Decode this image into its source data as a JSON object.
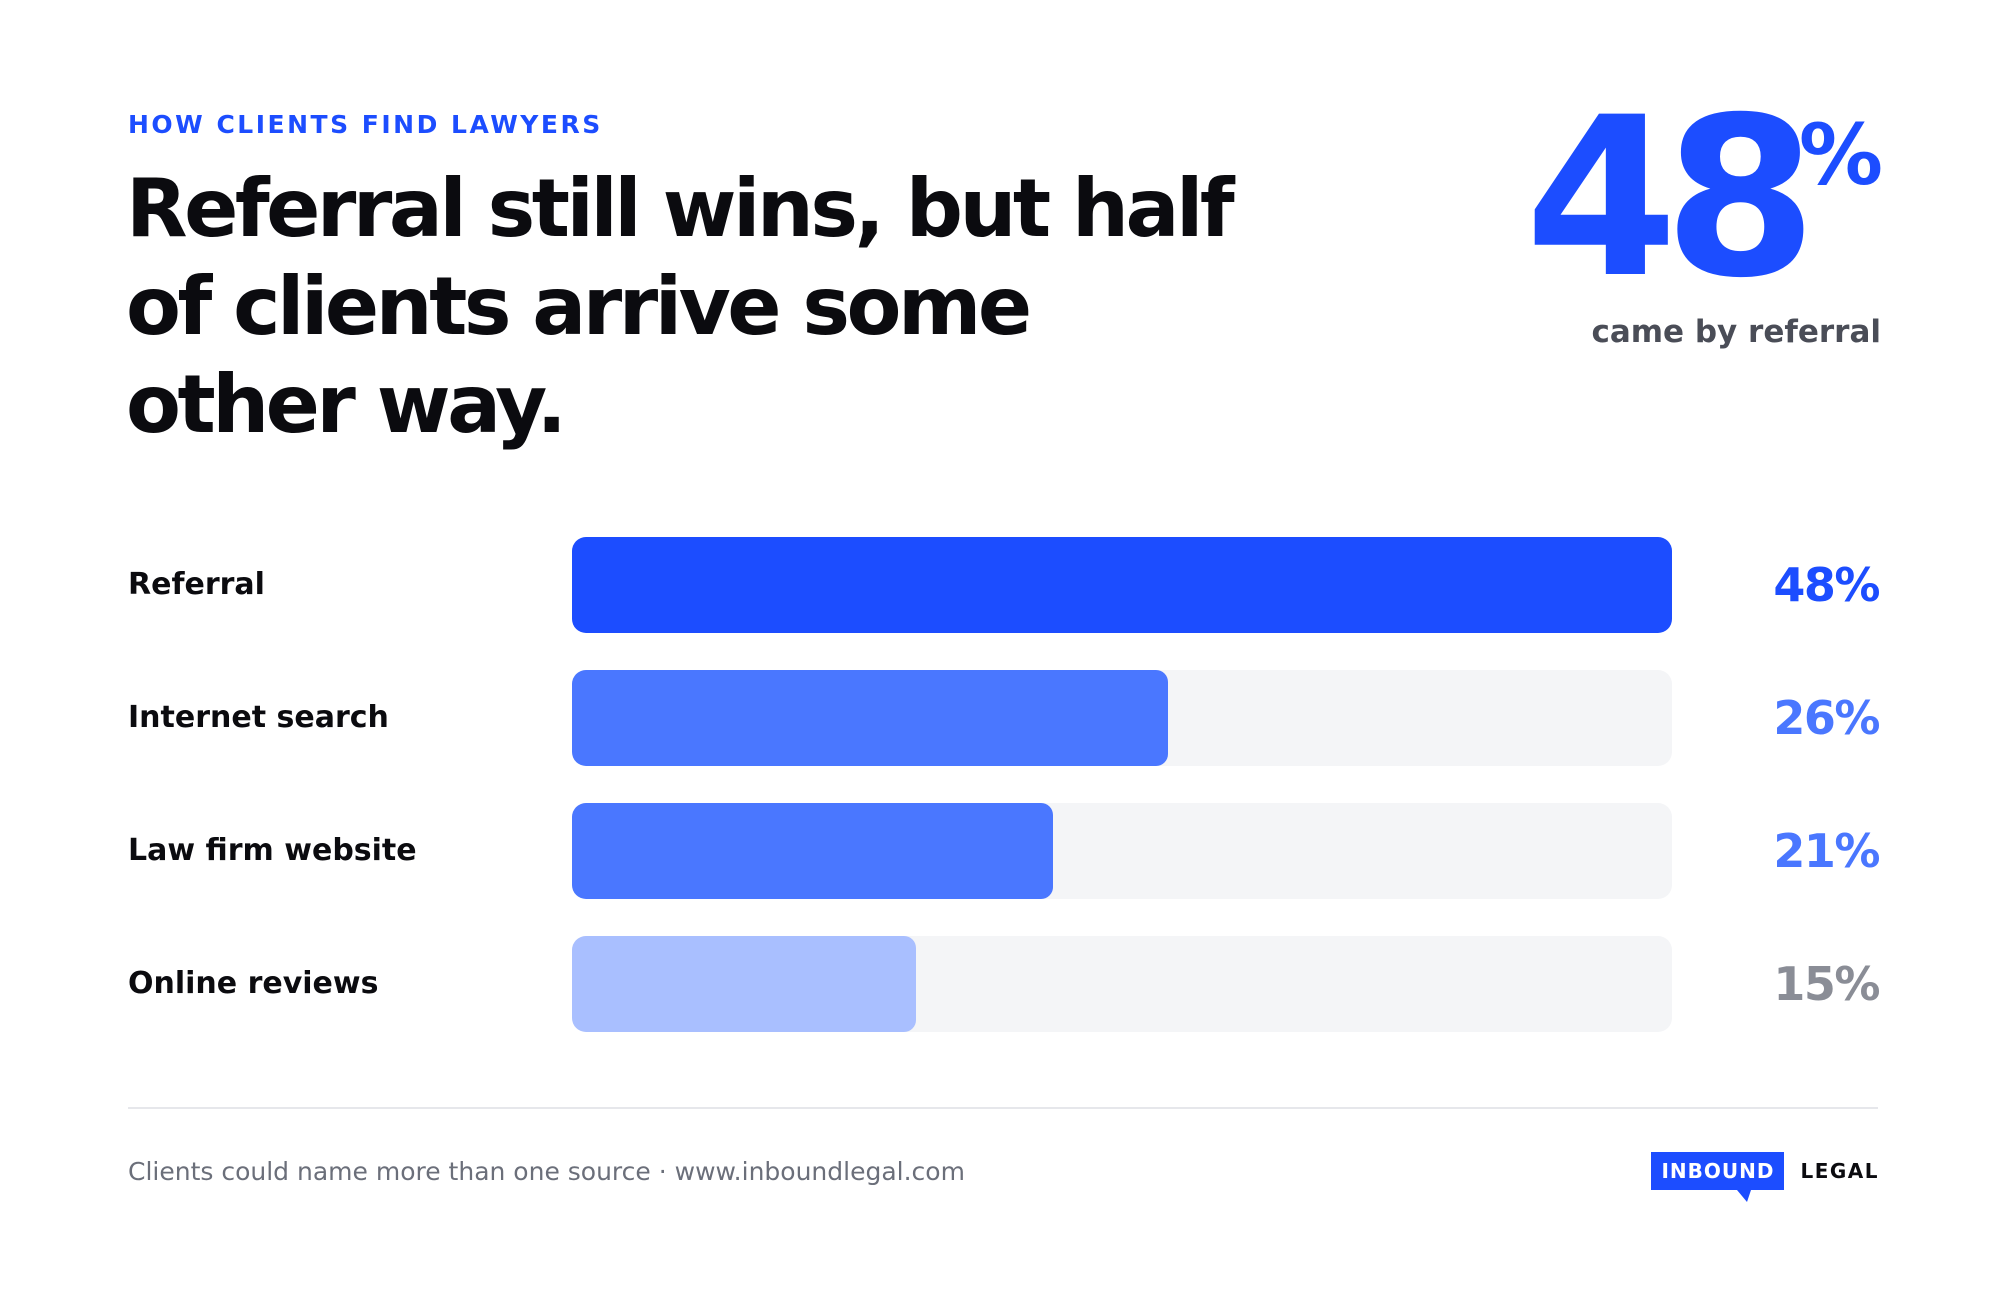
{
  "header": {
    "eyebrow": "HOW CLIENTS FIND LAWYERS",
    "headline": "Referral still wins, but half of clients arrive some other way."
  },
  "kpi": {
    "value": "48",
    "unit": "%",
    "caption": "came by referral"
  },
  "chart_data": {
    "type": "bar",
    "orientation": "horizontal",
    "categories": [
      "Referral",
      "Internet search",
      "Law firm website",
      "Online reviews"
    ],
    "values": [
      48,
      26,
      21,
      15
    ],
    "value_labels": [
      "48%",
      "26%",
      "21%",
      "15%"
    ],
    "xlim": [
      0,
      48
    ],
    "bar_colors": [
      "#1c4dff",
      "#4a77ff",
      "#4a77ff",
      "#a9bfff"
    ],
    "label_colors": [
      "#1c4dff",
      "#4a77ff",
      "#4a77ff",
      "#8a8d96"
    ],
    "track_color": "#f4f5f7",
    "grid": false,
    "legend": "none"
  },
  "footer": {
    "note": "Clients could name more than one source · www.inboundlegal.com",
    "logo_primary": "INBOUND",
    "logo_secondary": "LEGAL"
  }
}
